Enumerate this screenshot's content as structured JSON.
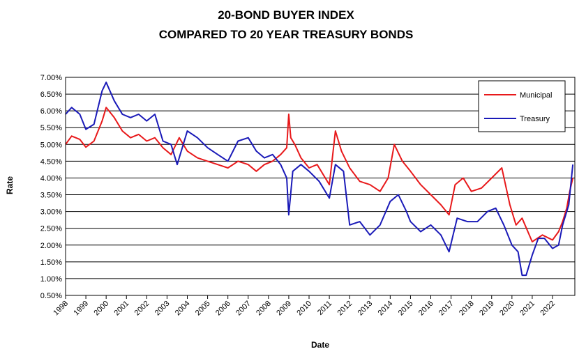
{
  "chart_data": {
    "type": "line",
    "title_line1": "20-BOND BUYER INDEX",
    "title_line2": "COMPARED TO 20 YEAR TREASURY BONDS",
    "xlabel": "Date",
    "ylabel": "Rate",
    "ylim": [
      0.005,
      0.07
    ],
    "xlim": [
      1998,
      2023.1
    ],
    "y_ticks": [
      "0.50%",
      "1.00%",
      "1.50%",
      "2.00%",
      "2.50%",
      "3.00%",
      "3.50%",
      "4.00%",
      "4.50%",
      "5.00%",
      "5.50%",
      "6.00%",
      "6.50%",
      "7.00%"
    ],
    "x_ticks": [
      "1998",
      "1999",
      "2000",
      "2001",
      "2002",
      "2003",
      "2004",
      "2005",
      "2006",
      "2007",
      "2008",
      "2009",
      "2010",
      "2011",
      "2012",
      "2013",
      "2014",
      "2015",
      "2016",
      "2017",
      "2018",
      "2019",
      "2020",
      "2021",
      "2022"
    ],
    "grid": "horizontal",
    "legend_placement": "top-right",
    "series": [
      {
        "name": "Municipal",
        "color": "#e8191b",
        "x": [
          1998.0,
          1998.3,
          1998.7,
          1999.0,
          1999.4,
          1999.8,
          2000.0,
          2000.4,
          2000.8,
          2001.2,
          2001.6,
          2002.0,
          2002.4,
          2002.8,
          2003.2,
          2003.6,
          2004.0,
          2004.5,
          2005.0,
          2005.5,
          2006.0,
          2006.5,
          2007.0,
          2007.4,
          2007.8,
          2008.2,
          2008.6,
          2008.9,
          2009.0,
          2009.1,
          2009.3,
          2009.6,
          2010.0,
          2010.4,
          2010.8,
          2011.0,
          2011.3,
          2011.6,
          2012.0,
          2012.5,
          2013.0,
          2013.5,
          2013.9,
          2014.2,
          2014.6,
          2015.0,
          2015.5,
          2016.0,
          2016.5,
          2016.9,
          2017.2,
          2017.6,
          2018.0,
          2018.5,
          2019.0,
          2019.5,
          2019.9,
          2020.2,
          2020.5,
          2021.0,
          2021.5,
          2022.0,
          2022.3,
          2022.5,
          2022.7,
          2022.85,
          2023.0
        ],
        "values": [
          0.05,
          0.0525,
          0.0515,
          0.0492,
          0.051,
          0.057,
          0.061,
          0.058,
          0.054,
          0.052,
          0.053,
          0.051,
          0.052,
          0.049,
          0.047,
          0.052,
          0.048,
          0.046,
          0.045,
          0.044,
          0.043,
          0.045,
          0.044,
          0.042,
          0.044,
          0.045,
          0.047,
          0.049,
          0.059,
          0.052,
          0.05,
          0.046,
          0.043,
          0.044,
          0.04,
          0.038,
          0.054,
          0.048,
          0.043,
          0.039,
          0.038,
          0.036,
          0.04,
          0.05,
          0.045,
          0.042,
          0.038,
          0.035,
          0.032,
          0.029,
          0.038,
          0.04,
          0.036,
          0.037,
          0.04,
          0.043,
          0.032,
          0.026,
          0.028,
          0.021,
          0.023,
          0.0215,
          0.024,
          0.027,
          0.031,
          0.036,
          0.04
        ]
      },
      {
        "name": "Treasury",
        "color": "#1a1ab8",
        "x": [
          1998.0,
          1998.3,
          1998.7,
          1999.0,
          1999.4,
          1999.8,
          2000.0,
          2000.4,
          2000.8,
          2001.2,
          2001.6,
          2002.0,
          2002.4,
          2002.8,
          2003.2,
          2003.5,
          2003.8,
          2004.0,
          2004.5,
          2005.0,
          2005.5,
          2006.0,
          2006.5,
          2007.0,
          2007.4,
          2007.8,
          2008.2,
          2008.6,
          2008.9,
          2009.0,
          2009.2,
          2009.6,
          2010.0,
          2010.5,
          2011.0,
          2011.3,
          2011.7,
          2012.0,
          2012.5,
          2013.0,
          2013.5,
          2014.0,
          2014.4,
          2014.8,
          2015.0,
          2015.5,
          2016.0,
          2016.5,
          2016.9,
          2017.3,
          2017.8,
          2018.3,
          2018.8,
          2019.2,
          2019.6,
          2020.0,
          2020.3,
          2020.5,
          2020.7,
          2021.0,
          2021.3,
          2021.6,
          2022.0,
          2022.3,
          2022.5,
          2022.8,
          2023.0
        ],
        "values": [
          0.059,
          0.061,
          0.059,
          0.0545,
          0.056,
          0.066,
          0.0685,
          0.063,
          0.059,
          0.058,
          0.059,
          0.057,
          0.059,
          0.051,
          0.05,
          0.044,
          0.05,
          0.054,
          0.052,
          0.049,
          0.047,
          0.045,
          0.051,
          0.052,
          0.048,
          0.046,
          0.047,
          0.044,
          0.04,
          0.029,
          0.042,
          0.044,
          0.042,
          0.039,
          0.034,
          0.044,
          0.042,
          0.026,
          0.027,
          0.023,
          0.026,
          0.033,
          0.035,
          0.03,
          0.027,
          0.024,
          0.026,
          0.023,
          0.018,
          0.028,
          0.027,
          0.027,
          0.03,
          0.031,
          0.026,
          0.02,
          0.018,
          0.011,
          0.011,
          0.017,
          0.022,
          0.022,
          0.019,
          0.02,
          0.026,
          0.032,
          0.044
        ]
      }
    ]
  }
}
